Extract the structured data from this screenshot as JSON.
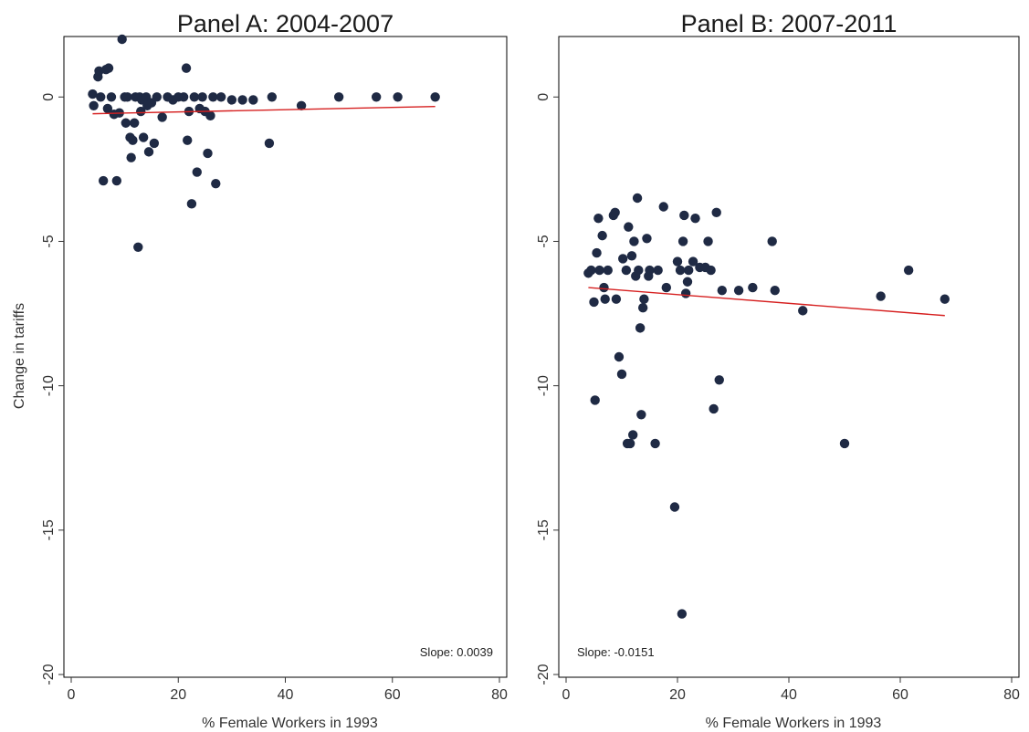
{
  "chart_data": [
    {
      "type": "scatter",
      "title": "Panel A: 2004-2007",
      "xlabel": "% Female Workers in 1993",
      "ylabel": "Change in tariffs",
      "xlim": [
        0,
        80
      ],
      "ylim": [
        -20,
        2
      ],
      "xticks": [
        0,
        20,
        40,
        60,
        80
      ],
      "yticks": [
        -20,
        -15,
        -10,
        -5,
        0
      ],
      "grid": false,
      "annotation": "Slope: 0.0039",
      "colors": {
        "point": "#1f2a44",
        "fit": "#d62020"
      },
      "fit_line": {
        "x": [
          4,
          68
        ],
        "y": [
          -0.58,
          -0.33
        ]
      },
      "points": [
        [
          4,
          0.1
        ],
        [
          4.2,
          -0.3
        ],
        [
          5,
          0.7
        ],
        [
          5.2,
          0.9
        ],
        [
          5.5,
          0
        ],
        [
          6,
          -2.9
        ],
        [
          6.5,
          0.95
        ],
        [
          6.8,
          -0.4
        ],
        [
          7,
          1.0
        ],
        [
          7.5,
          0
        ],
        [
          8,
          -0.6
        ],
        [
          8.5,
          -2.9
        ],
        [
          9,
          -0.55
        ],
        [
          9.5,
          2.0
        ],
        [
          10,
          0
        ],
        [
          10.2,
          -0.9
        ],
        [
          10.5,
          0
        ],
        [
          11,
          -1.4
        ],
        [
          11.2,
          -2.1
        ],
        [
          11.5,
          -1.5
        ],
        [
          11.8,
          -0.9
        ],
        [
          12,
          0
        ],
        [
          12.5,
          -5.2
        ],
        [
          12.8,
          0
        ],
        [
          13,
          -0.5
        ],
        [
          13.2,
          -0.1
        ],
        [
          13.5,
          -1.4
        ],
        [
          14,
          0
        ],
        [
          14.2,
          -0.3
        ],
        [
          14.5,
          -1.9
        ],
        [
          15,
          -0.2
        ],
        [
          15.5,
          -1.6
        ],
        [
          16,
          0
        ],
        [
          17,
          -0.7
        ],
        [
          18,
          0
        ],
        [
          19,
          -0.1
        ],
        [
          20,
          0
        ],
        [
          21,
          0
        ],
        [
          21.5,
          1.0
        ],
        [
          21.7,
          -1.5
        ],
        [
          22,
          -0.5
        ],
        [
          22.5,
          -3.7
        ],
        [
          23,
          0
        ],
        [
          23.5,
          -2.6
        ],
        [
          24,
          -0.4
        ],
        [
          24.5,
          0
        ],
        [
          25,
          -0.5
        ],
        [
          25.5,
          -1.95
        ],
        [
          26,
          -0.65
        ],
        [
          26.5,
          0
        ],
        [
          27,
          -3.0
        ],
        [
          28,
          0
        ],
        [
          30,
          -0.1
        ],
        [
          32,
          -0.1
        ],
        [
          34,
          -0.1
        ],
        [
          37,
          -1.6
        ],
        [
          37.5,
          0
        ],
        [
          43,
          -0.3
        ],
        [
          50,
          0
        ],
        [
          57,
          0
        ],
        [
          61,
          0
        ],
        [
          68,
          0
        ]
      ]
    },
    {
      "type": "scatter",
      "title": "Panel B: 2007-2011",
      "xlabel": "% Female Workers in 1993",
      "ylabel": "",
      "xlim": [
        0,
        80
      ],
      "ylim": [
        -20,
        2
      ],
      "xticks": [
        0,
        20,
        40,
        60,
        80
      ],
      "yticks": [
        -20,
        -15,
        -10,
        -5,
        0
      ],
      "grid": false,
      "annotation": "Slope: -0.0151",
      "colors": {
        "point": "#1f2a44",
        "fit": "#d62020"
      },
      "fit_line": {
        "x": [
          4,
          68
        ],
        "y": [
          -6.6,
          -7.57
        ]
      },
      "points": [
        [
          4,
          -6.1
        ],
        [
          4.5,
          -6.0
        ],
        [
          5,
          -7.1
        ],
        [
          5.2,
          -10.5
        ],
        [
          5.5,
          -5.4
        ],
        [
          5.8,
          -4.2
        ],
        [
          6,
          -6.0
        ],
        [
          6.5,
          -4.8
        ],
        [
          6.8,
          -6.6
        ],
        [
          7,
          -7.0
        ],
        [
          7.5,
          -6.0
        ],
        [
          8.5,
          -4.1
        ],
        [
          8.8,
          -4.0
        ],
        [
          9,
          -7.0
        ],
        [
          9.5,
          -9.0
        ],
        [
          10,
          -9.6
        ],
        [
          10.2,
          -5.6
        ],
        [
          10.8,
          -6.0
        ],
        [
          11,
          -12.0
        ],
        [
          11.2,
          -4.5
        ],
        [
          11.5,
          -12.0
        ],
        [
          11.8,
          -5.5
        ],
        [
          12,
          -11.7
        ],
        [
          12.2,
          -5.0
        ],
        [
          12.5,
          -6.2
        ],
        [
          12.8,
          -3.5
        ],
        [
          13,
          -6.0
        ],
        [
          13.3,
          -8.0
        ],
        [
          13.5,
          -11.0
        ],
        [
          13.8,
          -7.3
        ],
        [
          14,
          -7.0
        ],
        [
          14.5,
          -4.9
        ],
        [
          14.8,
          -6.2
        ],
        [
          15,
          -6.0
        ],
        [
          16,
          -12.0
        ],
        [
          16.5,
          -6.0
        ],
        [
          17.5,
          -3.8
        ],
        [
          18,
          -6.6
        ],
        [
          19.5,
          -14.2
        ],
        [
          20,
          -5.7
        ],
        [
          20.5,
          -6.0
        ],
        [
          20.8,
          -17.9
        ],
        [
          21,
          -5.0
        ],
        [
          21.2,
          -4.1
        ],
        [
          21.5,
          -6.8
        ],
        [
          21.8,
          -6.4
        ],
        [
          22,
          -6.0
        ],
        [
          22.8,
          -5.7
        ],
        [
          23.2,
          -4.2
        ],
        [
          24,
          -5.9
        ],
        [
          25,
          -5.9
        ],
        [
          25.5,
          -5.0
        ],
        [
          26,
          -6.0
        ],
        [
          26.5,
          -10.8
        ],
        [
          27,
          -4.0
        ],
        [
          27.5,
          -9.8
        ],
        [
          28,
          -6.7
        ],
        [
          31,
          -6.7
        ],
        [
          33.5,
          -6.6
        ],
        [
          37,
          -5.0
        ],
        [
          37.5,
          -6.7
        ],
        [
          42.5,
          -7.4
        ],
        [
          50,
          -12.0
        ],
        [
          56.5,
          -6.9
        ],
        [
          61.5,
          -6.0
        ],
        [
          68,
          -7.0
        ]
      ]
    }
  ]
}
